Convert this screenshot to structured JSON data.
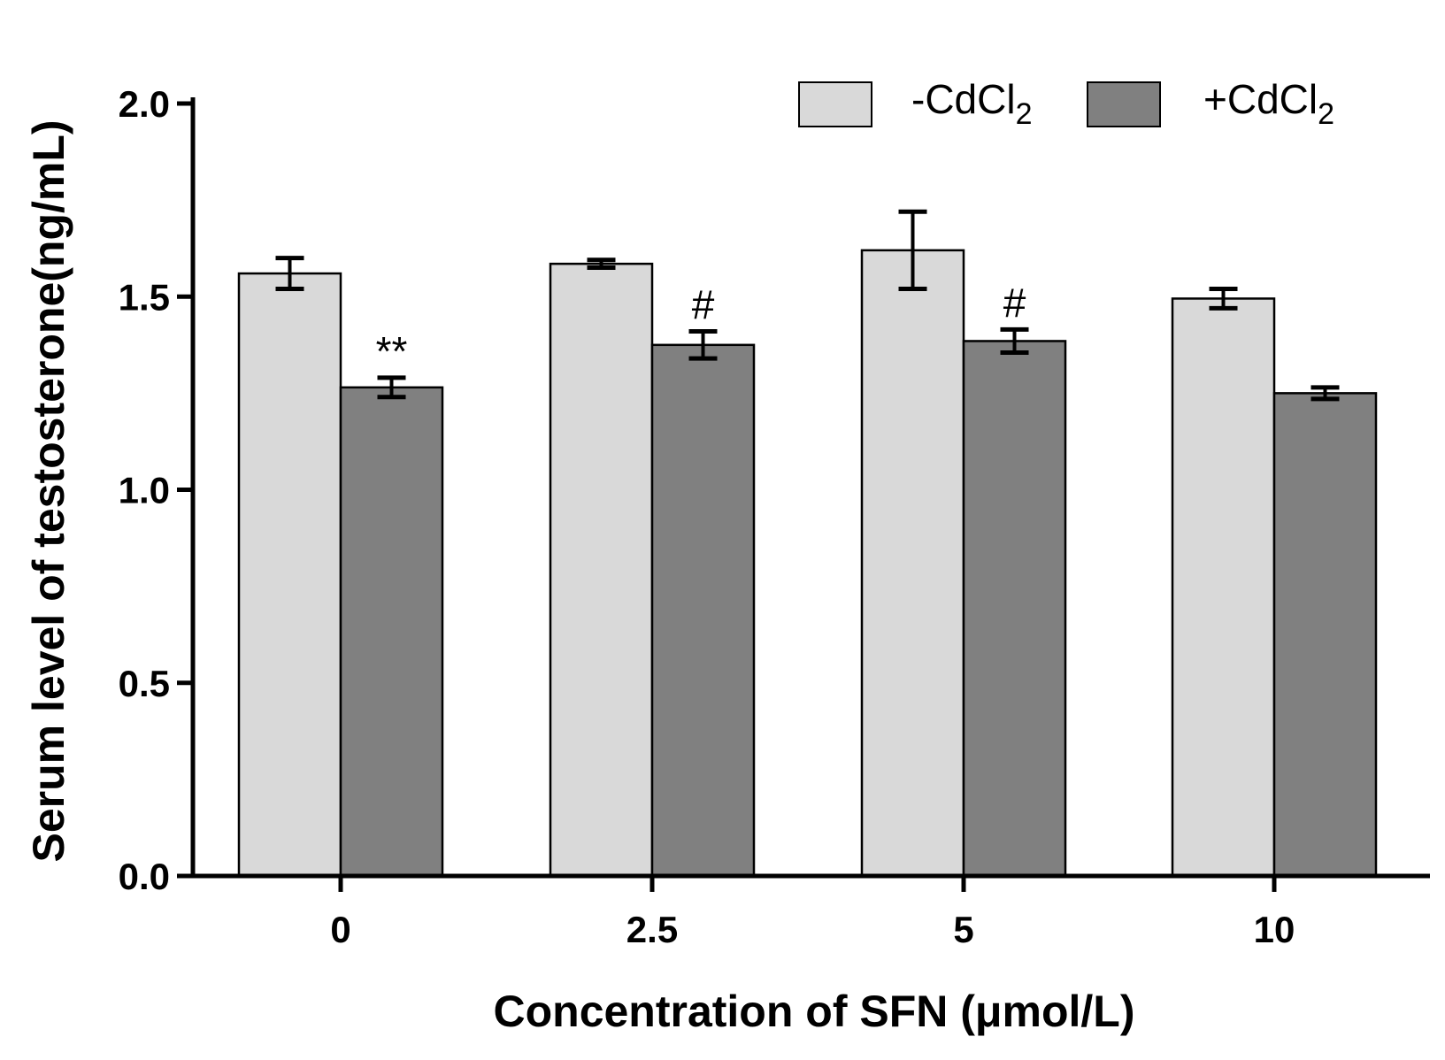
{
  "chart_data": {
    "type": "bar",
    "title": "",
    "xlabel": "Concentration of SFN (μmol/L)",
    "ylabel": "Serum level of testosterone(ng/mL)",
    "ylim": [
      0,
      2.0
    ],
    "yticks": [
      "0.0",
      "0.5",
      "1.0",
      "1.5",
      "2.0"
    ],
    "ytick_values": [
      0,
      0.5,
      1.0,
      1.5,
      2.0
    ],
    "categories": [
      "0",
      "2.5",
      "5",
      "10"
    ],
    "series": [
      {
        "name": "-CdCl",
        "name_sub": "2",
        "color": "#d9d9d9",
        "values": [
          1.56,
          1.585,
          1.62,
          1.495
        ],
        "errors": [
          0.04,
          0.01,
          0.1,
          0.025
        ],
        "annotations": [
          "",
          "",
          "",
          ""
        ]
      },
      {
        "name": "+CdCl",
        "name_sub": "2",
        "color": "#808080",
        "values": [
          1.265,
          1.375,
          1.385,
          1.25
        ],
        "errors": [
          0.025,
          0.035,
          0.03,
          0.015
        ],
        "annotations": [
          "**",
          "#",
          "#",
          ""
        ]
      }
    ],
    "legend_position": "top-right",
    "grid": false
  }
}
